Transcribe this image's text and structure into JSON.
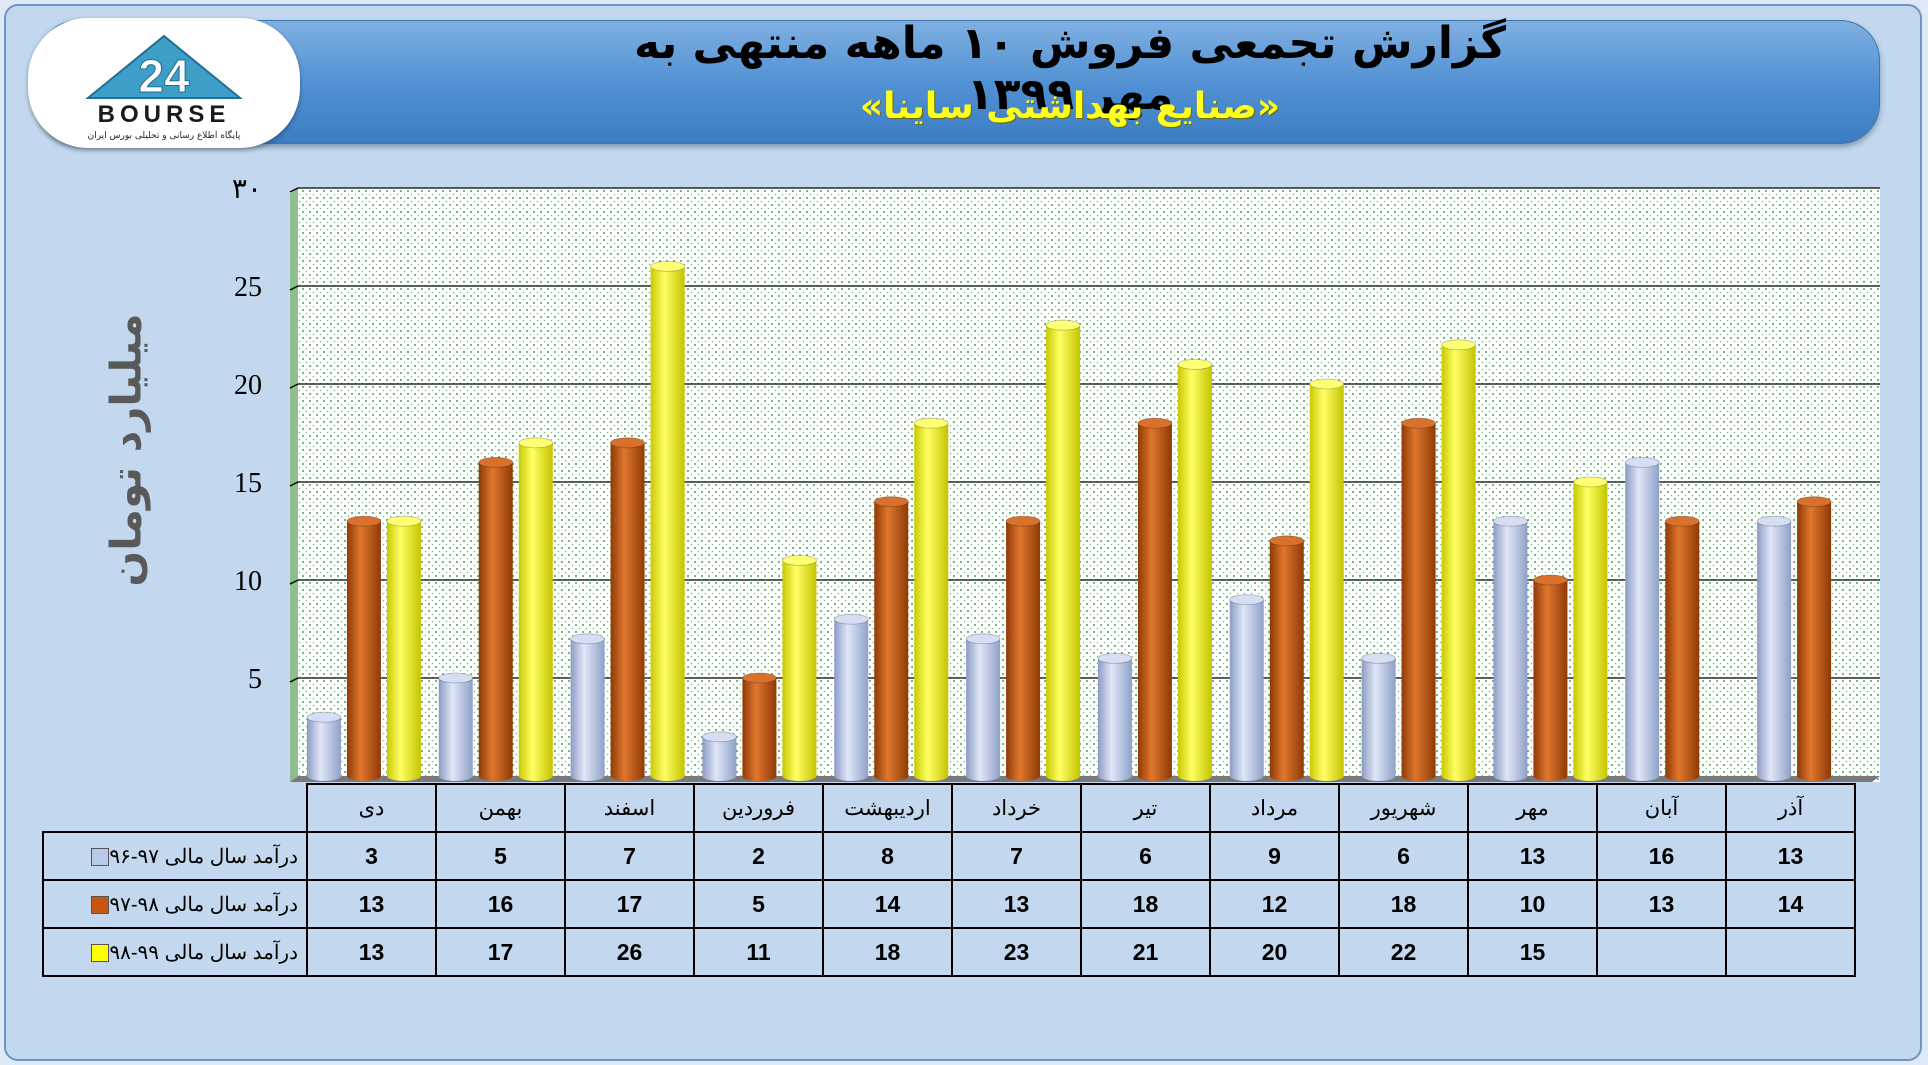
{
  "header": {
    "title": "گزارش تجمعی فروش ۱۰ ماهه منتهی به مهر ۱۳۹۹",
    "subtitle": "«صنایع بهداشتی ساینا»"
  },
  "logo": {
    "wordmark": "BOURSE",
    "tagline": "پایگاه اطلاع رسانی و تحلیلی بورس ایران",
    "icon": "bourse-24-logo"
  },
  "chart_data": {
    "type": "bar",
    "style": "3d-cylinder",
    "ylabel": "میلیارد تومان",
    "ylim": [
      0,
      30
    ],
    "yticks": [
      "۳۰",
      "25",
      "20",
      "15",
      "10",
      "5"
    ],
    "ytick_values": [
      30,
      25,
      20,
      15,
      10,
      5
    ],
    "grid": true,
    "categories": [
      "دی",
      "بهمن",
      "اسفند",
      "فروردین",
      "اردیبهشت",
      "خرداد",
      "تیر",
      "مرداد",
      "شهریور",
      "مهر",
      "آبان",
      "آذر"
    ],
    "series": [
      {
        "name": "درآمد سال مالی ۹۷-۹۶",
        "color": "#b9c9ea",
        "values": [
          3,
          5,
          7,
          2,
          8,
          7,
          6,
          9,
          6,
          13,
          16,
          13
        ]
      },
      {
        "name": "درآمد سال مالی ۹۸-۹۷",
        "color": "#c9560f",
        "values": [
          13,
          16,
          17,
          5,
          14,
          13,
          18,
          12,
          18,
          10,
          13,
          14
        ]
      },
      {
        "name": "درآمد سال مالی ۹۹-۹۸",
        "color": "#ffff00",
        "values": [
          13,
          17,
          26,
          11,
          18,
          23,
          21,
          20,
          22,
          15,
          null,
          null
        ]
      }
    ]
  }
}
